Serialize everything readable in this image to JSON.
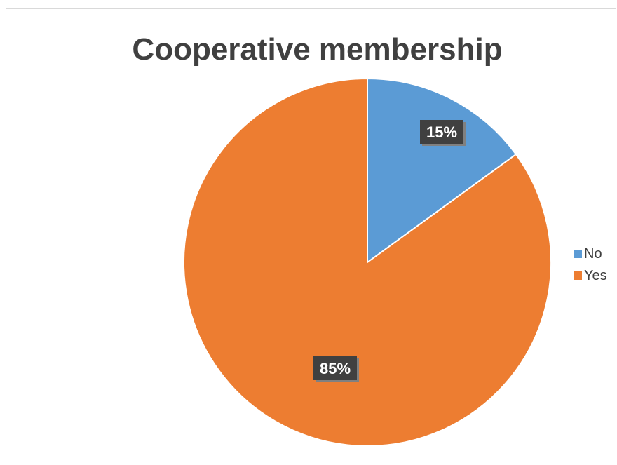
{
  "chart_data": {
    "type": "pie",
    "title": "Cooperative membership",
    "categories": [
      "No",
      "Yes"
    ],
    "values": [
      15,
      85
    ],
    "data_labels": [
      "15%",
      "85%"
    ],
    "colors": [
      "#5b9bd5",
      "#ed7d31"
    ],
    "legend_position": "right"
  }
}
